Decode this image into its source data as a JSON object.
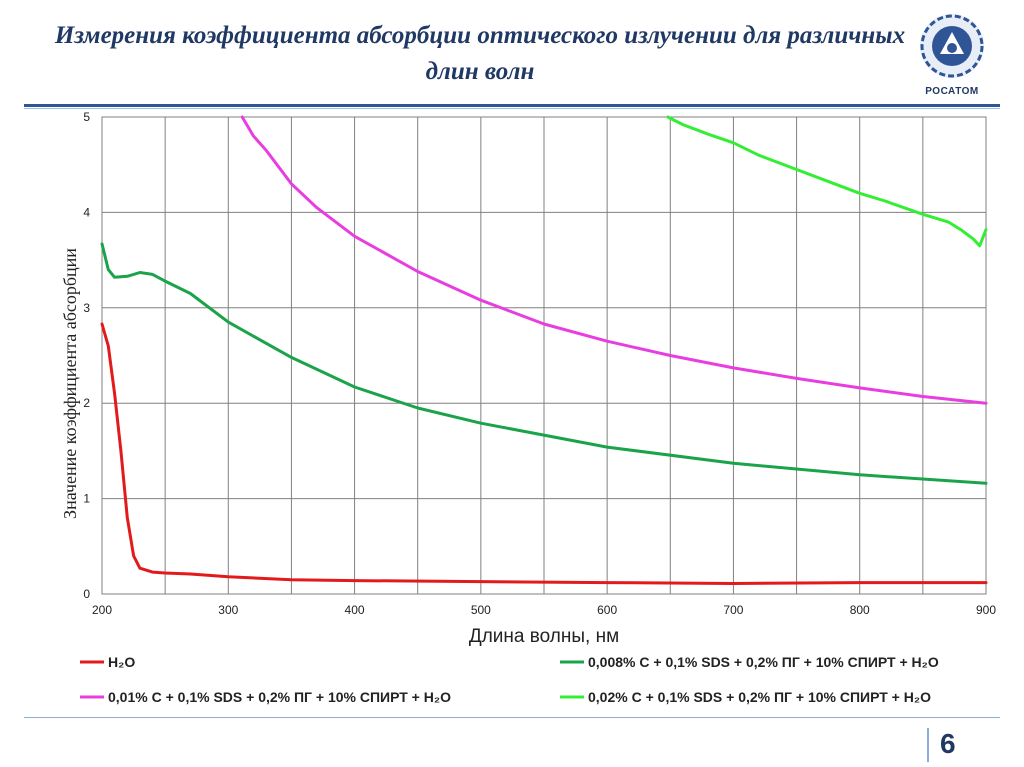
{
  "slide": {
    "title": "Измерения коэффициента абсорбции оптического излучении для различных длин волн",
    "logo_text": "РОСАТОМ",
    "page_number": "6"
  },
  "colors": {
    "title": "#1f3864",
    "rule": "#2f5597",
    "grid": "#808080"
  },
  "chart_data": {
    "type": "line",
    "title": "",
    "xlabel": "Длина волны, нм",
    "ylabel": "Значение коэффициента абсорбции",
    "xlim": [
      200,
      900
    ],
    "ylim": [
      0,
      5
    ],
    "x_ticks": [
      200,
      300,
      400,
      500,
      600,
      700,
      800,
      900
    ],
    "y_ticks": [
      0,
      1,
      2,
      3,
      4,
      5
    ],
    "grid": true,
    "legend_position": "bottom",
    "series": [
      {
        "name": "H₂O",
        "color": "#e31a1c",
        "x": [
          200,
          205,
          210,
          215,
          220,
          225,
          230,
          240,
          250,
          270,
          300,
          350,
          400,
          500,
          600,
          700,
          800,
          900
        ],
        "y": [
          2.83,
          2.6,
          2.1,
          1.5,
          0.8,
          0.4,
          0.27,
          0.23,
          0.22,
          0.21,
          0.18,
          0.15,
          0.14,
          0.13,
          0.12,
          0.11,
          0.12,
          0.12
        ]
      },
      {
        "name": "0,008% C + 0,1% SDS + 0,2% ПГ + 10% СПИРТ + H₂O",
        "color": "#1aa34a",
        "x": [
          200,
          205,
          210,
          220,
          230,
          240,
          250,
          270,
          300,
          350,
          400,
          450,
          500,
          600,
          700,
          800,
          900
        ],
        "y": [
          3.67,
          3.4,
          3.32,
          3.33,
          3.37,
          3.35,
          3.28,
          3.15,
          2.85,
          2.48,
          2.17,
          1.95,
          1.79,
          1.54,
          1.37,
          1.25,
          1.16
        ]
      },
      {
        "name": "0,01% C + 0,1% SDS + 0,2% ПГ + 10% СПИРТ + H₂O",
        "color": "#e83ee0",
        "x": [
          311,
          320,
          330,
          350,
          370,
          400,
          450,
          500,
          550,
          600,
          650,
          700,
          750,
          800,
          850,
          900
        ],
        "y": [
          5.0,
          4.8,
          4.65,
          4.3,
          4.05,
          3.75,
          3.38,
          3.08,
          2.83,
          2.65,
          2.5,
          2.37,
          2.26,
          2.16,
          2.07,
          2.0
        ]
      },
      {
        "name": "0,02% C + 0,1% SDS + 0,2% ПГ + 10% СПИРТ + H₂O",
        "color": "#33ee33",
        "x": [
          648,
          660,
          680,
          700,
          720,
          750,
          780,
          800,
          820,
          850,
          870,
          880,
          890,
          895,
          900
        ],
        "y": [
          5.0,
          4.92,
          4.82,
          4.73,
          4.6,
          4.45,
          4.3,
          4.2,
          4.12,
          3.98,
          3.9,
          3.82,
          3.72,
          3.65,
          3.82
        ]
      }
    ]
  }
}
